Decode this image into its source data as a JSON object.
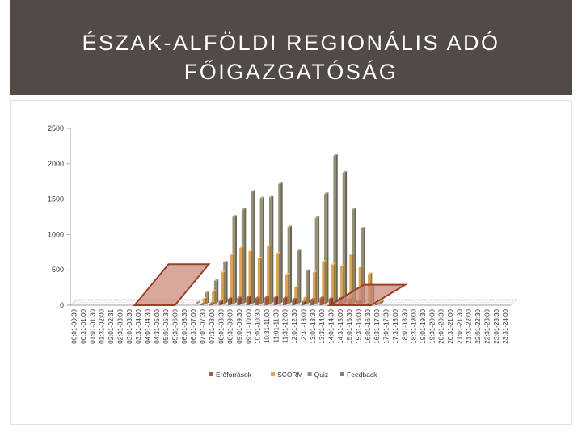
{
  "header": {
    "title_line1": "ÉSZAK-ALFÖLDI REGIONÁLIS ADÓ",
    "title_line2": "FŐIGAZGATÓSÁG"
  },
  "colors": {
    "header_bg": "#514a47",
    "eroforrasok": "#a15c43",
    "scorm": "#d9a55a",
    "quiz": "#948f78",
    "feedback": "#7f7f7f",
    "highlight_fill": "#c98b7a",
    "highlight_stroke": "#9b3f2a"
  },
  "chart_data": {
    "type": "bar",
    "title": "",
    "xlabel": "",
    "ylabel": "",
    "ylim": [
      0,
      2500
    ],
    "yticks": [
      0,
      500,
      1000,
      1500,
      2000,
      2500
    ],
    "grid": false,
    "legend_position": "bottom",
    "categories": [
      "00:01-00:30",
      "00:31-01:00",
      "01:01-01:30",
      "01:31-02:00",
      "02:01-02:31",
      "02:31-03:00",
      "03:01-03:30",
      "03:31-04:00",
      "04:01-04:30",
      "04:31-05:00",
      "05:01-05:30",
      "05:31-06:00",
      "06:01-06:30",
      "06:31-07:00",
      "07:01-07:30",
      "07:31-08:00",
      "08:01-08:30",
      "08:31-09:00",
      "09:01-09:30",
      "09:31-10:00",
      "10:01-10:30",
      "10:31-11:00",
      "11:01-11:30",
      "11:31-12:00",
      "12:01-12:30",
      "12:31-13:00",
      "13:01-13:30",
      "13:31-14:00",
      "14:01-14:30",
      "14:31-15:00",
      "15:01-15:30",
      "15:31-16:00",
      "16:01-16:30",
      "16:31-17:00",
      "17:01-17:30",
      "17:31-18:00",
      "18:01-18:30",
      "18:31-19:00",
      "19:01-19:30",
      "19:31-20:00",
      "20:01-20:30",
      "20:31-21:00",
      "21:01-21:30",
      "21:31-22:00",
      "22:01-22:30",
      "22:31-23:00",
      "23:01-23:30",
      "23:31-24:00"
    ],
    "series": [
      {
        "name": "Erőforrások",
        "values": [
          0,
          0,
          0,
          0,
          0,
          0,
          0,
          0,
          0,
          0,
          0,
          0,
          0,
          0,
          10,
          20,
          50,
          90,
          100,
          110,
          100,
          110,
          110,
          100,
          80,
          40,
          80,
          100,
          90,
          90,
          80,
          60,
          10,
          5,
          0,
          0,
          0,
          0,
          0,
          0,
          0,
          0,
          0,
          0,
          0,
          0,
          0,
          0
        ]
      },
      {
        "name": "SCORM",
        "values": [
          0,
          0,
          0,
          0,
          0,
          0,
          0,
          0,
          0,
          0,
          0,
          0,
          0,
          0,
          80,
          180,
          450,
          700,
          800,
          750,
          650,
          820,
          720,
          420,
          240,
          100,
          450,
          600,
          560,
          540,
          700,
          520,
          430,
          30,
          0,
          0,
          0,
          0,
          0,
          0,
          0,
          0,
          0,
          0,
          0,
          0,
          0,
          0
        ]
      },
      {
        "name": "Quiz",
        "values": [
          0,
          0,
          0,
          0,
          0,
          0,
          0,
          0,
          0,
          0,
          0,
          0,
          0,
          10,
          150,
          320,
          580,
          1230,
          1330,
          1580,
          1490,
          1500,
          1690,
          1080,
          740,
          460,
          1210,
          1550,
          2090,
          1850,
          1330,
          1060,
          230,
          20,
          0,
          0,
          0,
          0,
          0,
          0,
          0,
          0,
          0,
          0,
          0,
          0,
          0,
          0
        ]
      },
      {
        "name": "Feedback",
        "values": [
          0,
          0,
          0,
          0,
          0,
          0,
          0,
          0,
          0,
          0,
          0,
          0,
          0,
          0,
          0,
          0,
          0,
          0,
          0,
          0,
          0,
          0,
          0,
          0,
          0,
          0,
          0,
          0,
          0,
          0,
          0,
          0,
          0,
          0,
          0,
          0,
          0,
          0,
          0,
          0,
          0,
          0,
          0,
          0,
          0,
          0,
          0,
          0
        ]
      }
    ]
  }
}
